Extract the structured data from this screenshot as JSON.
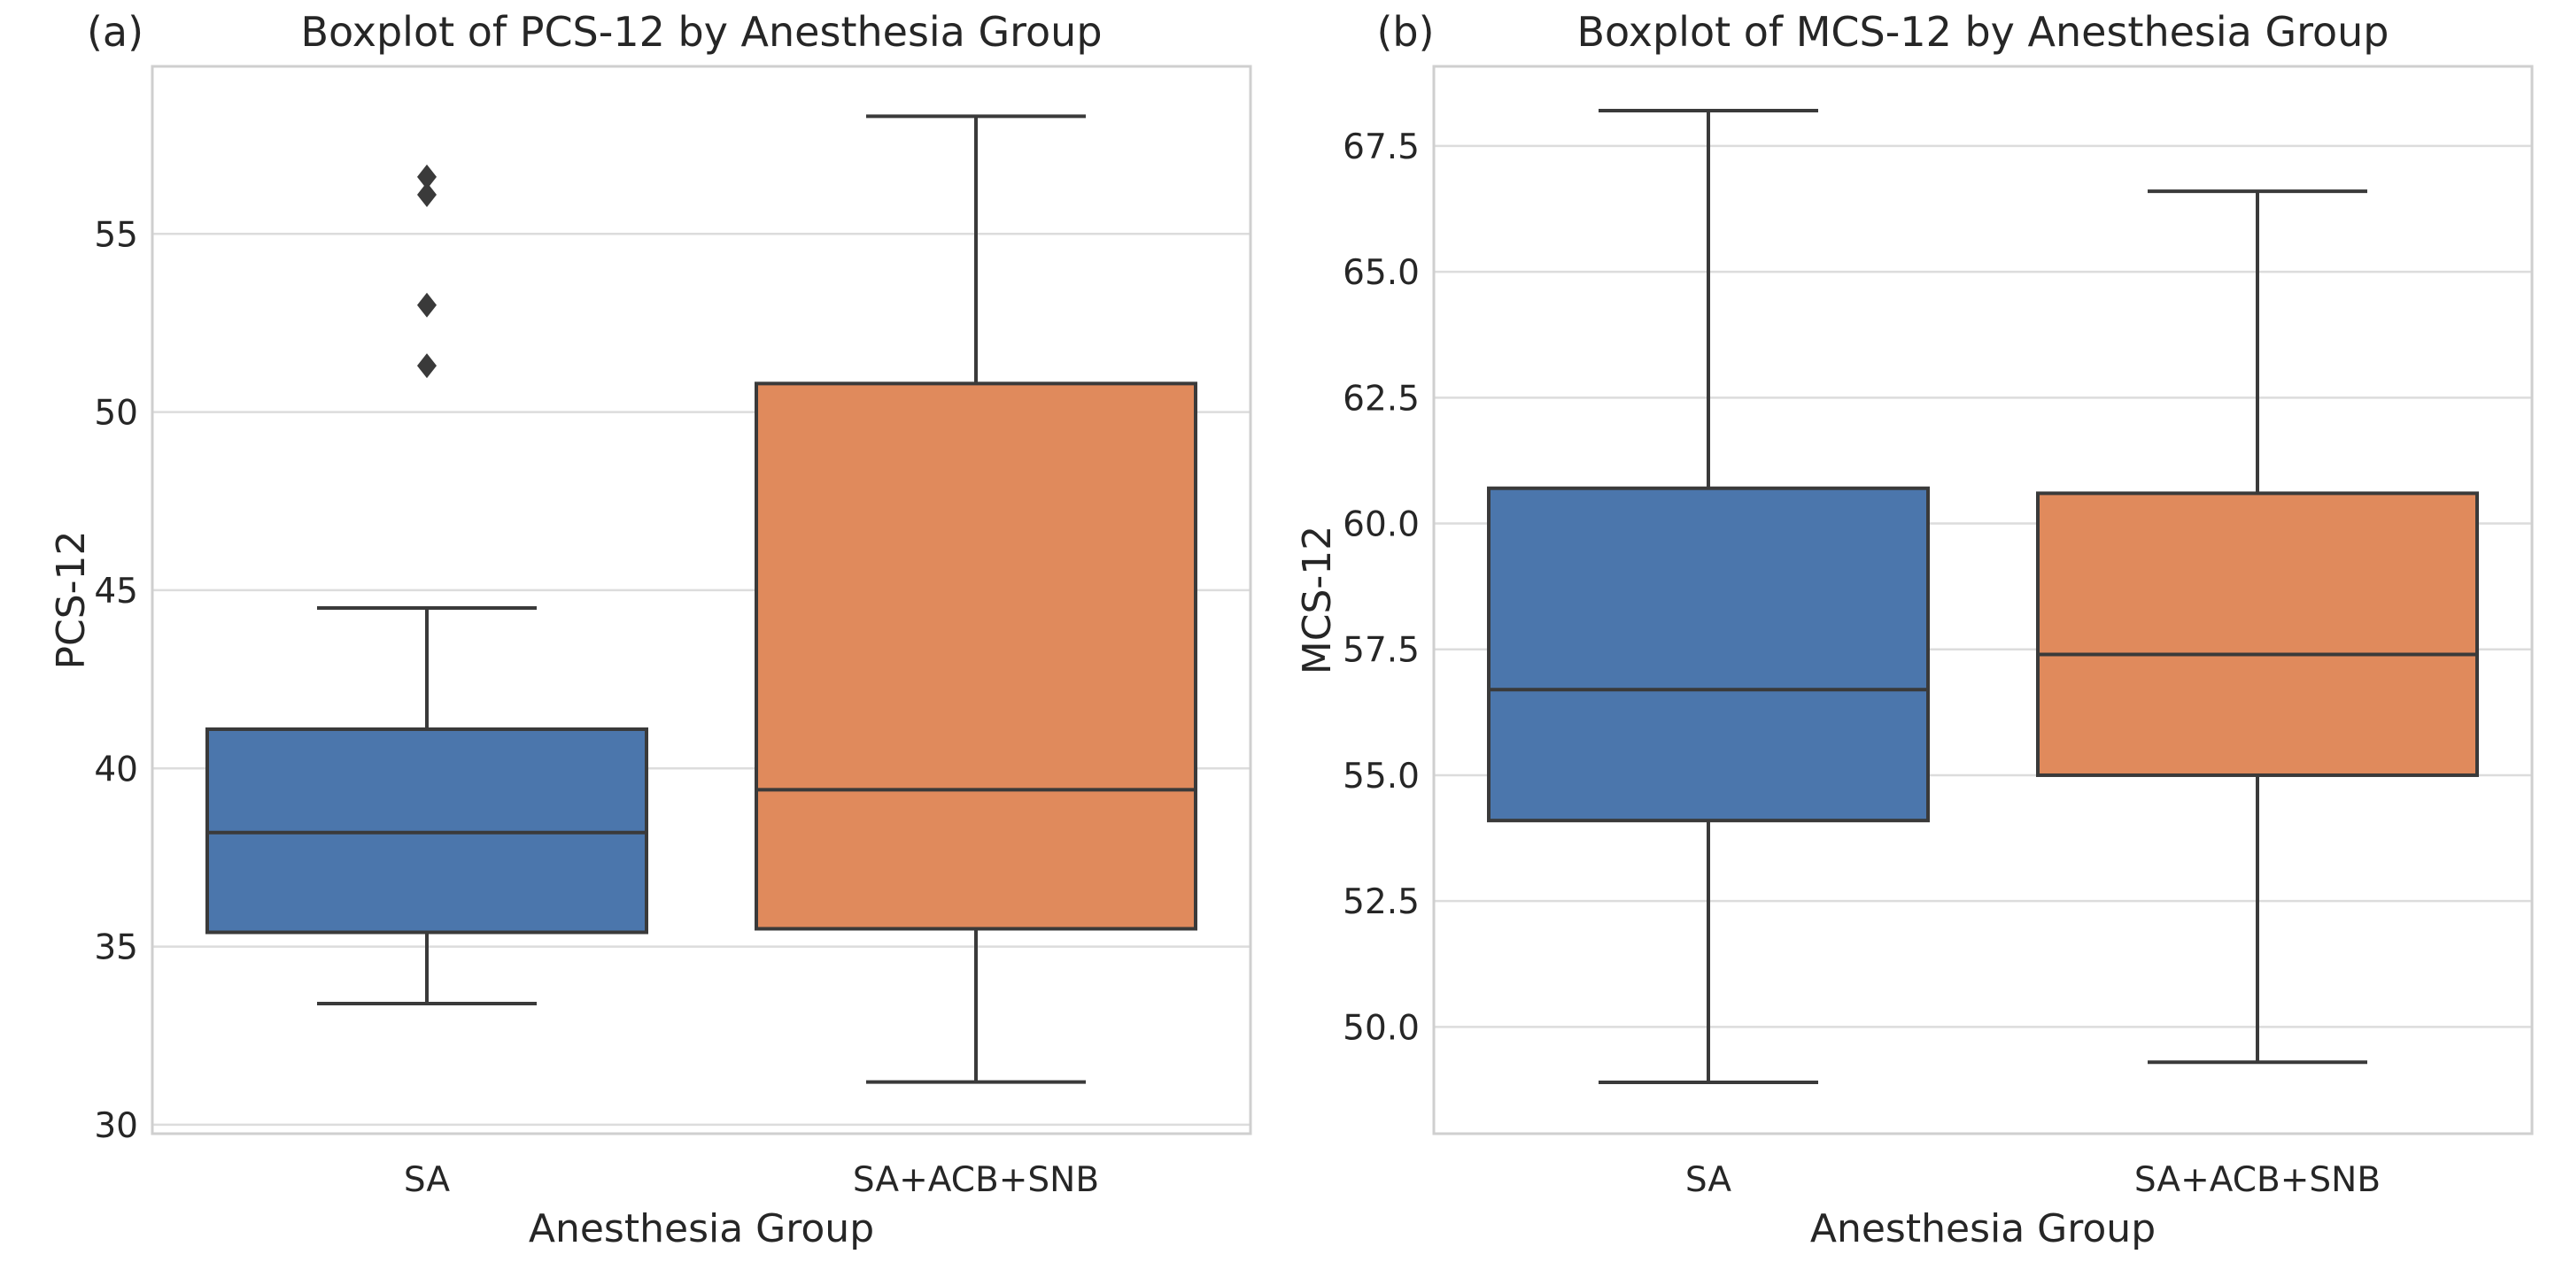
{
  "colors": {
    "box_blue": "#4B76AC",
    "box_orange": "#E08A5C",
    "box_edge": "#3A3A3A",
    "median_line": "#3A3A3A",
    "whisker": "#3A3A3A",
    "outlier": "#3A3A3A",
    "gridline": "#DCDCDC",
    "spine": "#CFCFCF",
    "text": "#262626",
    "background": "#FFFFFF"
  },
  "chart_data": [
    {
      "type": "boxplot",
      "panel_label": "(a)",
      "title": "Boxplot of PCS-12 by Anesthesia Group",
      "xlabel": "Anesthesia Group",
      "ylabel": "PCS-12",
      "categories": [
        "SA",
        "SA+ACB+SNB"
      ],
      "ylim": [
        29.75,
        59.7
      ],
      "ytick_values": [
        30,
        35,
        40,
        45,
        50,
        55
      ],
      "ytick_labels": [
        "30",
        "35",
        "40",
        "45",
        "50",
        "55"
      ],
      "grid": true,
      "legend": "none",
      "boxes": [
        {
          "category": "SA",
          "color": "#4B76AC",
          "whisker_low": 33.4,
          "q1": 35.4,
          "median": 38.2,
          "q3": 41.1,
          "whisker_high": 44.5,
          "outliers": [
            51.3,
            53.0,
            56.1,
            56.6
          ]
        },
        {
          "category": "SA+ACB+SNB",
          "color": "#E08A5C",
          "whisker_low": 31.2,
          "q1": 35.5,
          "median": 39.4,
          "q3": 50.8,
          "whisker_high": 58.3,
          "outliers": []
        }
      ]
    },
    {
      "type": "boxplot",
      "panel_label": "(b)",
      "title": "Boxplot of MCS-12 by Anesthesia Group",
      "xlabel": "Anesthesia Group",
      "ylabel": "MCS-12",
      "categories": [
        "SA",
        "SA+ACB+SNB"
      ],
      "ylim": [
        47.88,
        69.08
      ],
      "ytick_values": [
        50.0,
        52.5,
        55.0,
        57.5,
        60.0,
        62.5,
        65.0,
        67.5
      ],
      "ytick_labels": [
        "50.0",
        "52.5",
        "55.0",
        "57.5",
        "60.0",
        "62.5",
        "65.0",
        "67.5"
      ],
      "grid": true,
      "legend": "none",
      "boxes": [
        {
          "category": "SA",
          "color": "#4B76AC",
          "whisker_low": 48.9,
          "q1": 54.1,
          "median": 56.7,
          "q3": 60.7,
          "whisker_high": 68.2,
          "outliers": []
        },
        {
          "category": "SA+ACB+SNB",
          "color": "#E08A5C",
          "whisker_low": 49.3,
          "q1": 55.0,
          "median": 57.4,
          "q3": 60.6,
          "whisker_high": 66.6,
          "outliers": []
        }
      ]
    }
  ]
}
